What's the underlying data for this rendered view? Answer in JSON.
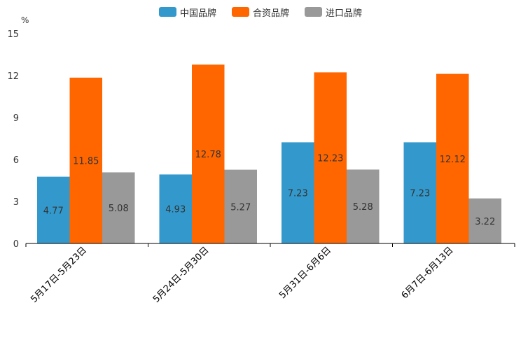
{
  "chart_data": {
    "type": "bar",
    "unit": "%",
    "categories": [
      "5月17日-5月23日",
      "5月24日-5月30日",
      "5月31日-6月6日",
      "6月7日-6月13日"
    ],
    "series": [
      {
        "name": "中国品牌",
        "color": "#3399cc",
        "values": [
          4.77,
          4.93,
          7.23,
          7.23
        ]
      },
      {
        "name": "合资品牌",
        "color": "#ff6600",
        "values": [
          11.85,
          12.78,
          12.23,
          12.12
        ]
      },
      {
        "name": "进口品牌",
        "color": "#999999",
        "values": [
          5.08,
          5.27,
          5.28,
          3.22
        ]
      }
    ],
    "y_ticks": [
      0,
      3,
      6,
      9,
      12,
      15
    ],
    "ylim": [
      0,
      15
    ],
    "legend_position": "top-center"
  }
}
